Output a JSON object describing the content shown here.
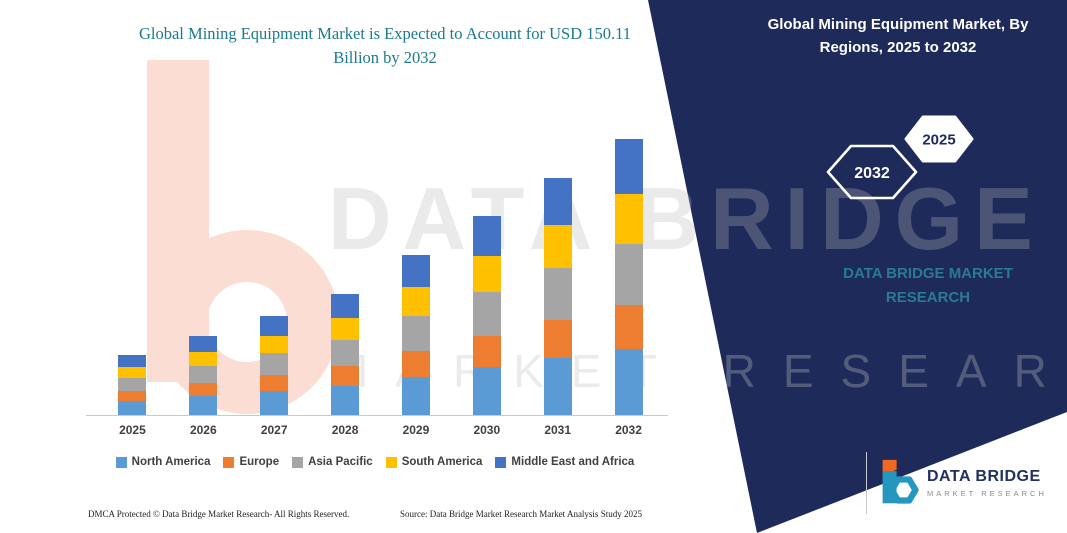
{
  "left": {
    "title": "Global Mining Equipment Market is Expected to Account for USD 150.11 Billion by 2032",
    "footer_left": "DMCA Protected © Data Bridge Market Research-  All Rights Reserved.",
    "footer_source": "Source: Data Bridge Market Research  Market Analysis Study 2025"
  },
  "right_panel": {
    "title": "Global Mining Equipment Market, By Regions, 2025 to 2032",
    "hex_back_label": "2032",
    "hex_front_label": "2025",
    "brand_line1": "DATA BRIDGE MARKET",
    "brand_line2": "RESEARCH",
    "panel_color": "#1E2A5A",
    "brand_text_color": "#2A7A96"
  },
  "watermark": {
    "line1": "DATA BRIDGE",
    "line2": "MARKET RESEARCH"
  },
  "logo": {
    "name": "DATA BRIDGE",
    "subtitle": "MARKET RESEARCH"
  },
  "chart_data": {
    "type": "bar",
    "stacked": true,
    "title": "Global Mining Equipment Market is Expected to Account for USD 150.11 Billion by 2032",
    "unit": "USD Billion",
    "categories": [
      "2025",
      "2026",
      "2027",
      "2028",
      "2029",
      "2030",
      "2031",
      "2032"
    ],
    "series": [
      {
        "name": "North America",
        "color": "#5B9BD5",
        "values": [
          7.8,
          10.3,
          13.0,
          15.8,
          20.9,
          25.9,
          31.0,
          36.0
        ]
      },
      {
        "name": "Europe",
        "color": "#ED7D31",
        "values": [
          5.2,
          6.9,
          8.6,
          10.6,
          13.9,
          17.3,
          20.6,
          24.0
        ]
      },
      {
        "name": "Asia Pacific",
        "color": "#A5A5A5",
        "values": [
          7.2,
          9.5,
          11.9,
          14.5,
          19.1,
          23.8,
          28.4,
          33.0
        ]
      },
      {
        "name": "South America",
        "color": "#FFC000",
        "values": [
          5.9,
          7.7,
          9.7,
          11.9,
          15.7,
          19.4,
          23.2,
          27.0
        ]
      },
      {
        "name": "Middle East and Africa",
        "color": "#4472C4",
        "values": [
          6.5,
          8.6,
          10.8,
          13.2,
          17.4,
          21.6,
          25.8,
          30.1
        ]
      }
    ],
    "totals_note": "2032 total = 150.11",
    "ylim": [
      0,
      160
    ],
    "grid": false,
    "axes_labeled": false,
    "legend_position": "bottom"
  }
}
